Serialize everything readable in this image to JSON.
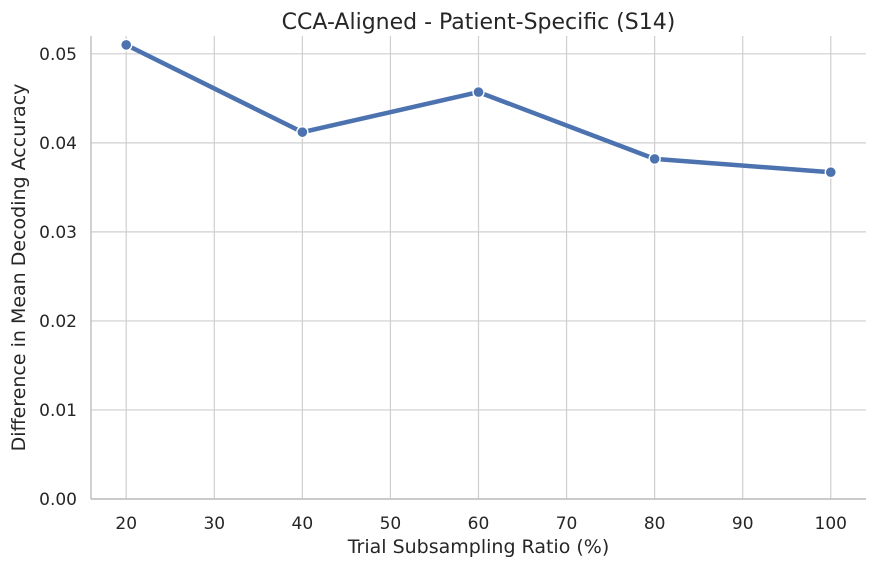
{
  "chart_data": {
    "type": "line",
    "title": "CCA-Aligned - Patient-Specific (S14)",
    "xlabel": "Trial Subsampling Ratio (%)",
    "ylabel": "Difference in Mean Decoding Accuracy",
    "xlim": [
      16,
      104
    ],
    "ylim": [
      0,
      0.052
    ],
    "xticks": [
      20,
      30,
      40,
      50,
      60,
      70,
      80,
      90,
      100
    ],
    "yticks": [
      0.0,
      0.01,
      0.02,
      0.03,
      0.04,
      0.05
    ],
    "ytick_labels": [
      "0.00",
      "0.01",
      "0.02",
      "0.03",
      "0.04",
      "0.05"
    ],
    "grid": true,
    "series": [
      {
        "color": "#4c72b0",
        "x": [
          20,
          40,
          60,
          80,
          100
        ],
        "y": [
          0.051,
          0.0412,
          0.0457,
          0.0382,
          0.0367
        ]
      }
    ]
  }
}
